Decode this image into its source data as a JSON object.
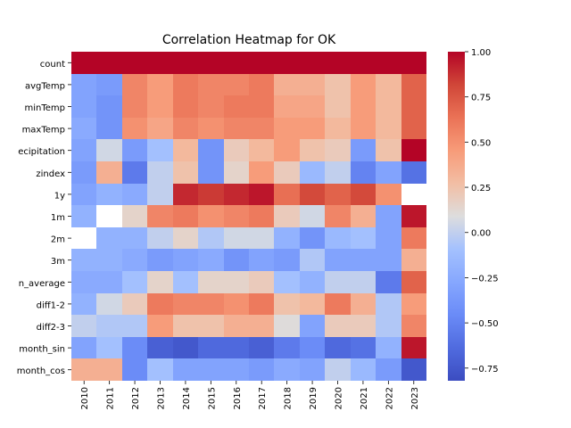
{
  "chart_data": {
    "type": "heatmap",
    "title": "Correlation Heatmap for OK",
    "xlabel": "",
    "ylabel": "",
    "x_categories": [
      "2010",
      "2011",
      "2012",
      "2013",
      "2014",
      "2015",
      "2016",
      "2017",
      "2018",
      "2019",
      "2020",
      "2021",
      "2022",
      "2023"
    ],
    "y_categories": [
      "count",
      "avgTemp",
      "minTemp",
      "maxTemp",
      "precipitation",
      "zindex",
      "1y",
      "1m",
      "2m",
      "3m",
      "diff_average",
      "diff1-2",
      "diff2-3",
      "month_sin",
      "month_cos"
    ],
    "y_tick_labels": [
      "count",
      "avgTemp",
      "minTemp",
      "maxTemp",
      "ecipitation",
      "zindex",
      "1y",
      "1m",
      "2m",
      "3m",
      "n_average",
      "diff1-2",
      "diff2-3",
      "month_sin",
      "month_cos"
    ],
    "values": [
      [
        1.0,
        1.0,
        1.0,
        1.0,
        1.0,
        1.0,
        1.0,
        1.0,
        1.0,
        1.0,
        1.0,
        1.0,
        1.0,
        1.0
      ],
      [
        -0.3,
        -0.35,
        0.55,
        0.45,
        0.6,
        0.55,
        0.55,
        0.6,
        0.35,
        0.35,
        0.25,
        0.45,
        0.3,
        0.7
      ],
      [
        -0.3,
        -0.4,
        0.55,
        0.45,
        0.6,
        0.55,
        0.6,
        0.6,
        0.4,
        0.4,
        0.25,
        0.45,
        0.3,
        0.7
      ],
      [
        -0.25,
        -0.4,
        0.5,
        0.4,
        0.55,
        0.5,
        0.55,
        0.55,
        0.45,
        0.45,
        0.3,
        0.45,
        0.3,
        0.7
      ],
      [
        -0.3,
        0.05,
        -0.35,
        -0.1,
        0.3,
        -0.4,
        0.2,
        0.3,
        0.45,
        0.25,
        0.2,
        -0.35,
        0.25,
        1.0
      ],
      [
        -0.35,
        0.35,
        -0.55,
        0.0,
        0.25,
        -0.4,
        0.15,
        0.45,
        0.2,
        -0.15,
        0.0,
        -0.5,
        -0.3,
        -0.6
      ],
      [
        -0.3,
        -0.2,
        -0.25,
        0.0,
        0.9,
        0.85,
        0.9,
        0.95,
        0.65,
        0.8,
        0.7,
        0.8,
        0.5,
        null
      ],
      [
        -0.2,
        null,
        0.15,
        0.55,
        0.6,
        0.5,
        0.55,
        0.6,
        0.2,
        0.05,
        0.55,
        0.35,
        -0.3,
        0.95
      ],
      [
        null,
        -0.2,
        -0.2,
        0.0,
        0.15,
        -0.05,
        0.05,
        0.05,
        -0.2,
        -0.4,
        -0.15,
        -0.1,
        -0.3,
        0.6
      ],
      [
        -0.2,
        -0.2,
        -0.25,
        -0.35,
        -0.3,
        -0.25,
        -0.4,
        -0.3,
        -0.35,
        -0.05,
        -0.3,
        -0.3,
        -0.3,
        0.35
      ],
      [
        -0.25,
        -0.25,
        -0.1,
        0.15,
        -0.1,
        0.15,
        0.15,
        0.2,
        -0.1,
        -0.2,
        0.0,
        0.0,
        -0.55,
        0.7
      ],
      [
        -0.2,
        0.05,
        0.2,
        0.6,
        0.55,
        0.55,
        0.5,
        0.6,
        0.25,
        0.3,
        0.6,
        0.35,
        -0.05,
        0.45
      ],
      [
        0.0,
        -0.05,
        -0.05,
        0.45,
        0.25,
        0.25,
        0.35,
        0.35,
        0.1,
        -0.3,
        0.2,
        0.2,
        -0.05,
        0.55
      ],
      [
        -0.3,
        -0.1,
        -0.45,
        -0.7,
        -0.75,
        -0.65,
        -0.65,
        -0.7,
        -0.55,
        -0.45,
        -0.65,
        -0.6,
        -0.2,
        0.95
      ],
      [
        0.35,
        0.35,
        -0.45,
        -0.1,
        -0.3,
        -0.3,
        -0.3,
        -0.35,
        -0.25,
        -0.3,
        0.0,
        -0.15,
        -0.35,
        -0.75
      ]
    ],
    "colormap": "coolwarm",
    "vmin": -0.82,
    "vmax": 1.0,
    "colorbar_ticks": [
      1.0,
      0.75,
      0.5,
      0.25,
      0.0,
      -0.25,
      -0.5,
      -0.75
    ],
    "colorbar_tick_labels": [
      "1.00",
      "0.75",
      "0.50",
      "0.25",
      "0.00",
      "−0.25",
      "−0.50",
      "−0.75"
    ],
    "missing_color": "#ffffff"
  }
}
